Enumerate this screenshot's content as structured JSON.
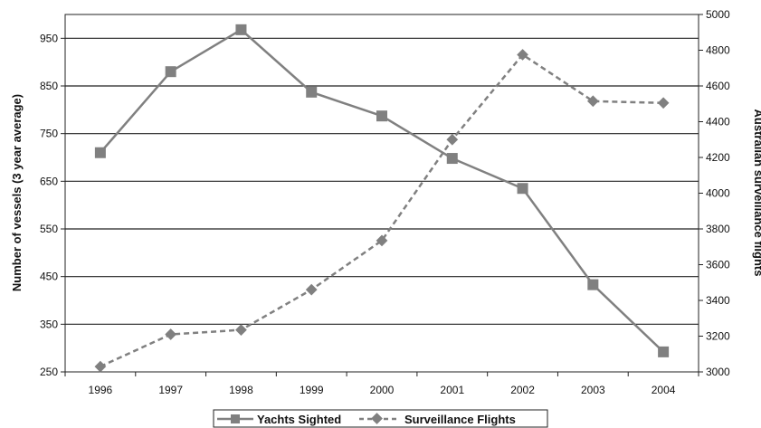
{
  "chart_data": {
    "type": "line",
    "categories": [
      "1996",
      "1997",
      "1998",
      "1999",
      "2000",
      "2001",
      "2002",
      "2003",
      "2004"
    ],
    "ylabel": "Number of vessels (3 year average)",
    "y2label": "Australian surveillance flights",
    "ylim": [
      250,
      1000
    ],
    "y2lim": [
      3000,
      5000
    ],
    "yticks": [
      250,
      350,
      450,
      550,
      650,
      750,
      850,
      950
    ],
    "y2ticks": [
      3000,
      3200,
      3400,
      3600,
      3800,
      4000,
      4200,
      4400,
      4600,
      4800,
      5000
    ],
    "grid": true,
    "legend_position": "bottom",
    "series": [
      {
        "name": "Yachts Sighted",
        "axis": "left",
        "style": "solid",
        "marker": "square",
        "color": "#808080",
        "values": [
          710,
          880,
          968,
          837,
          787,
          698,
          635,
          433,
          292
        ]
      },
      {
        "name": "Surveillance Flights",
        "axis": "right",
        "style": "dashed",
        "marker": "diamond",
        "color": "#808080",
        "values": [
          3030,
          3210,
          3235,
          3460,
          3735,
          4300,
          4775,
          4515,
          4505
        ]
      }
    ]
  }
}
